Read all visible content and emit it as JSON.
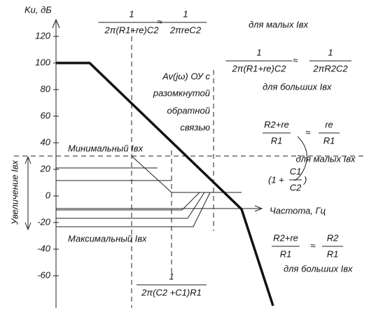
{
  "axis": {
    "label": "Ku, дБ",
    "ticks": [
      120,
      100,
      80,
      60,
      40,
      20,
      0,
      -20,
      -40,
      -60
    ],
    "x_label": "Частота, Гц",
    "side_label": "Увеличение Iвх"
  },
  "formulas": [
    {
      "left": {
        "num": "1",
        "den": "2π(R1+re)C2"
      },
      "approx": "≈",
      "right": {
        "num": "1",
        "den": "2πreC2"
      },
      "note": "для малых Iвх"
    },
    {
      "left": {
        "num": "1",
        "den": "2π(R1+re)C2"
      },
      "approx": "≈",
      "right": {
        "num": "1",
        "den": "2πR2C2"
      },
      "note": "для больших Iвх"
    },
    {
      "left": {
        "num": "R2+re",
        "den": "R1"
      },
      "approx": "≈",
      "right": {
        "num": "re",
        "den": "R1"
      },
      "note": "для малых Iвх"
    },
    {
      "left": {
        "num": "R2+re",
        "den": "R1"
      },
      "approx": "≈",
      "right": {
        "num": "R2",
        "den": "R1"
      },
      "note": "для больших Iвх"
    }
  ],
  "gain_term": {
    "open": "(1 +",
    "num": "C1",
    "den": "C2",
    "close": ")"
  },
  "bottom_fraction": {
    "num": "1",
    "den": "2π(C2 +C1)R1"
  },
  "open_loop": [
    "Av(jω) ОУ с",
    "разомкнутой",
    "обратной",
    "связью"
  ],
  "min_label": "Минимальный Iвх",
  "max_label": "Максимальный Iвх"
}
